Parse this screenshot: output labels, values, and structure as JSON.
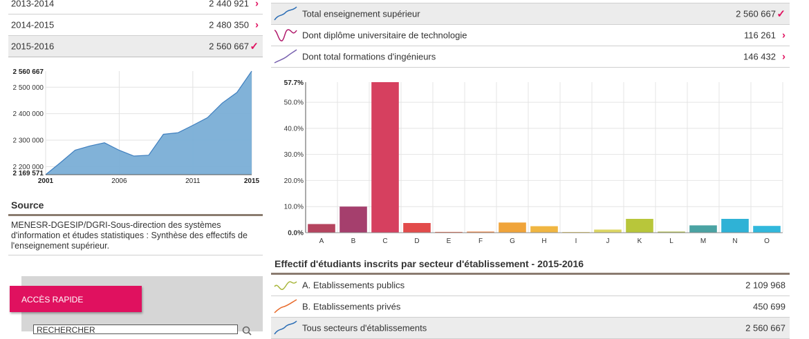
{
  "years": [
    {
      "label": "2013-2014",
      "value": "2 440 921",
      "mark": "›"
    },
    {
      "label": "2014-2015",
      "value": "2 480 350",
      "mark": "›"
    },
    {
      "label": "2015-2016",
      "value": "2 560 667",
      "mark": "✓"
    }
  ],
  "area_chart": {
    "type": "area",
    "x": [
      2001,
      2002,
      2003,
      2004,
      2005,
      2006,
      2007,
      2008,
      2009,
      2010,
      2011,
      2012,
      2013,
      2014,
      2015
    ],
    "values": [
      2169571,
      2215000,
      2262000,
      2278000,
      2290000,
      2262000,
      2240000,
      2243000,
      2322000,
      2328000,
      2356000,
      2385000,
      2440000,
      2480000,
      2560667
    ],
    "y_ticks": [
      {
        "v": 2200000,
        "label": "2 200 000"
      },
      {
        "v": 2300000,
        "label": "2 300 000"
      },
      {
        "v": 2400000,
        "label": "2 400 000"
      },
      {
        "v": 2500000,
        "label": "2 500 000"
      }
    ],
    "y_min_label": "2 169 571",
    "y_max_label": "2 560 667",
    "x_ticks": [
      {
        "v": 2001,
        "label": "2001",
        "bold": true
      },
      {
        "v": 2006,
        "label": "2006",
        "bold": false
      },
      {
        "v": 2011,
        "label": "2011",
        "bold": false
      },
      {
        "v": 2015,
        "label": "2015",
        "bold": true
      }
    ],
    "ylim": [
      2169571,
      2560667
    ],
    "color": "#7aaed6"
  },
  "source": {
    "title": "Source",
    "text": "MENESR-DGESIP/DGRI-Sous-direction des systèmes d'information et études statistiques : Synthèse des effectifs de l'enseignement supérieur."
  },
  "quick_access": {
    "tab_label": "ACCÈS RAPIDE",
    "search_value": "RECHERCHER"
  },
  "indicators": [
    {
      "label": "Total enseignement supérieur",
      "value": "2 560 667",
      "mark": "✓",
      "color": "#2a6db5"
    },
    {
      "label": "Dont diplôme universitaire de technologie",
      "value": "116 261",
      "mark": "›",
      "color": "#b0176a"
    },
    {
      "label": "Dont total formations d'ingénieurs",
      "value": "146 432",
      "mark": "›",
      "color": "#7a63b0"
    }
  ],
  "chart_data": {
    "type": "bar",
    "categories": [
      "A",
      "B",
      "C",
      "D",
      "E",
      "F",
      "G",
      "H",
      "I",
      "J",
      "K",
      "L",
      "M",
      "N",
      "O"
    ],
    "values": [
      3.3,
      10.0,
      57.7,
      3.7,
      0.3,
      0.4,
      3.9,
      2.5,
      0.2,
      1.2,
      5.3,
      0.4,
      2.8,
      5.3,
      2.6
    ],
    "colors": [
      "#b5445f",
      "#a53f6d",
      "#d6405f",
      "#e24b4b",
      "#e85a3a",
      "#ee7a32",
      "#f0a43a",
      "#f0b642",
      "#f0d254",
      "#dcd664",
      "#b8c63a",
      "#a8b63a",
      "#4aa3a3",
      "#2fb2d6",
      "#31b8dc"
    ],
    "y_ticks": [
      {
        "v": 0,
        "label": "0.0%"
      },
      {
        "v": 10,
        "label": "10.0%"
      },
      {
        "v": 20,
        "label": "20.0%"
      },
      {
        "v": 30,
        "label": "30.0%"
      },
      {
        "v": 40,
        "label": "40.0%"
      },
      {
        "v": 50,
        "label": "50.0%"
      }
    ],
    "y_max_label": "57.7%",
    "ylim": [
      0,
      57.7
    ],
    "title": "",
    "xlabel": "",
    "ylabel": ""
  },
  "sector": {
    "title": "Effectif d'étudiants inscrits par secteur d'établissement - 2015-2016",
    "rows": [
      {
        "label": "A. Etablissements publics",
        "value": "2 109 968",
        "color": "#a8b63a"
      },
      {
        "label": "B. Etablissements privés",
        "value": "450 699",
        "color": "#e86a2a"
      },
      {
        "label": "Tous secteurs d'établissements",
        "value": "2 560 667",
        "color": "#2a6db5"
      }
    ]
  }
}
